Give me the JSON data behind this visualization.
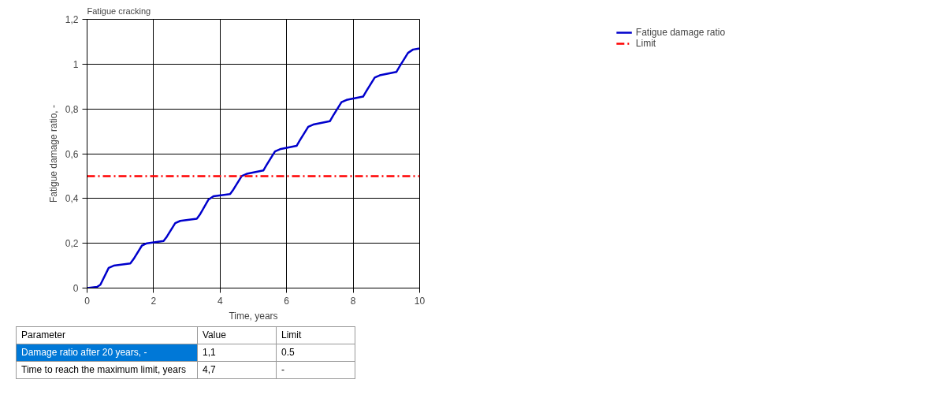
{
  "chart_data": {
    "type": "line",
    "title": "Fatigue cracking",
    "xlabel": "Time, years",
    "ylabel": "Fatigue damage ratio, -",
    "x": [
      0,
      0.3,
      0.4,
      0.65,
      0.8,
      1.3,
      1.4,
      1.65,
      1.8,
      2.3,
      2.4,
      2.65,
      2.8,
      3.3,
      3.4,
      3.65,
      3.8,
      4.3,
      4.4,
      4.65,
      4.8,
      5.3,
      5.4,
      5.65,
      5.8,
      6.3,
      6.4,
      6.65,
      6.8,
      7.3,
      7.4,
      7.65,
      7.8,
      8.3,
      8.4,
      8.65,
      8.8,
      9.3,
      9.4,
      9.65,
      9.8,
      10
    ],
    "series": [
      {
        "name": "Fatigue damage ratio",
        "color": "#0000cc",
        "values": [
          0,
          0.005,
          0.015,
          0.09,
          0.1,
          0.11,
          0.13,
          0.19,
          0.2,
          0.21,
          0.23,
          0.29,
          0.3,
          0.31,
          0.33,
          0.395,
          0.41,
          0.42,
          0.44,
          0.5,
          0.51,
          0.525,
          0.55,
          0.61,
          0.62,
          0.635,
          0.66,
          0.72,
          0.73,
          0.745,
          0.77,
          0.83,
          0.84,
          0.855,
          0.88,
          0.94,
          0.95,
          0.965,
          0.99,
          1.05,
          1.065,
          1.07
        ]
      }
    ],
    "ref_lines": [
      {
        "axis": "y",
        "value": 0.5,
        "label": "Limit",
        "color": "#ff0000",
        "line_style": "dashed"
      }
    ],
    "xlim": [
      0,
      10
    ],
    "xticks": [
      0,
      2,
      4,
      6,
      8,
      10
    ],
    "ylim": [
      0,
      1.2
    ],
    "yticks": [
      0,
      {
        "value": 0.2,
        "label": "0,2"
      },
      {
        "value": 0.4,
        "label": "0,4"
      },
      {
        "value": 0.6,
        "label": "0,6"
      },
      {
        "value": 0.8,
        "label": "0,8"
      },
      1,
      {
        "value": 1.2,
        "label": "1,2"
      }
    ],
    "grid": true,
    "legend": "top right",
    "marker": "none",
    "line_style": "solid",
    "annotations": [
      "Parameter",
      "Value",
      "Limit",
      "Damage ratio after 20 years, -",
      "1,1",
      "0.5",
      "Time to reach the maximum limit, years",
      "4,7",
      "-"
    ]
  }
}
